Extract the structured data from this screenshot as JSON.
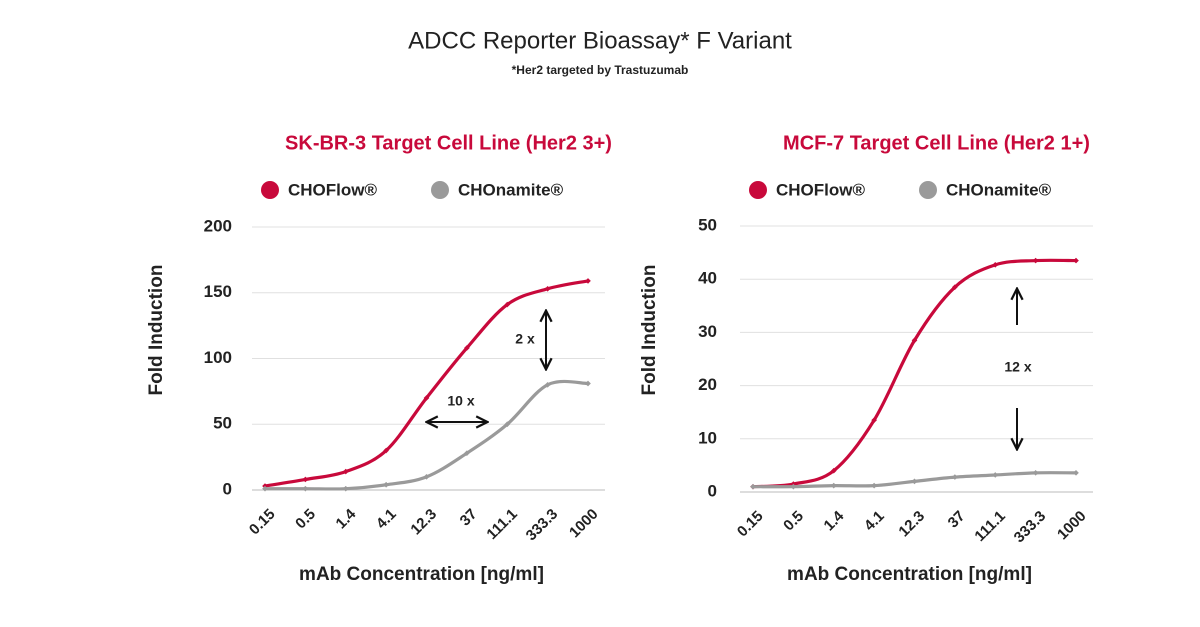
{
  "title": "ADCC Reporter Bioassay* F Variant",
  "subtitle": "*Her2 targeted by Trastuzumab",
  "chart_data": [
    {
      "type": "line",
      "title": "SK-BR-3 Target Cell Line (Her2 3+)",
      "x_label": "mAb Concentration [ng/ml]",
      "y_label": "Fold Induction",
      "categories": [
        "0.15",
        "0.5",
        "1.4",
        "4.1",
        "12.3",
        "37",
        "111.1",
        "333.3",
        "1000"
      ],
      "series": [
        {
          "name": "CHOFlow®",
          "color": "#c8093b",
          "values": [
            3,
            8,
            14,
            30,
            70,
            108,
            141,
            153,
            159
          ]
        },
        {
          "name": "CHOnamite®",
          "color": "#9a9a9a",
          "values": [
            1,
            1,
            1,
            4,
            10,
            28,
            50,
            80,
            81
          ]
        }
      ],
      "ylim": [
        0,
        200
      ],
      "yticks": [
        0,
        50,
        100,
        150,
        200
      ],
      "grid": true,
      "annotations": [
        "2 x",
        "10 x"
      ]
    },
    {
      "type": "line",
      "title": "MCF-7 Target Cell Line (Her2 1+)",
      "x_label": "mAb Concentration [ng/ml]",
      "y_label": "Fold Induction",
      "categories": [
        "0.15",
        "0.5",
        "1.4",
        "4.1",
        "12.3",
        "37",
        "111.1",
        "333.3",
        "1000"
      ],
      "series": [
        {
          "name": "CHOFlow®",
          "color": "#c8093b",
          "values": [
            1,
            1.5,
            4,
            13.5,
            28.5,
            38.5,
            42.7,
            43.5,
            43.5
          ]
        },
        {
          "name": "CHOnamite®",
          "color": "#9a9a9a",
          "values": [
            1,
            1,
            1.2,
            1.2,
            2,
            2.8,
            3.2,
            3.6,
            3.6
          ]
        }
      ],
      "ylim": [
        0,
        50
      ],
      "yticks": [
        0,
        10,
        20,
        30,
        40,
        50
      ],
      "grid": true,
      "annotations": [
        "12 x"
      ]
    }
  ]
}
